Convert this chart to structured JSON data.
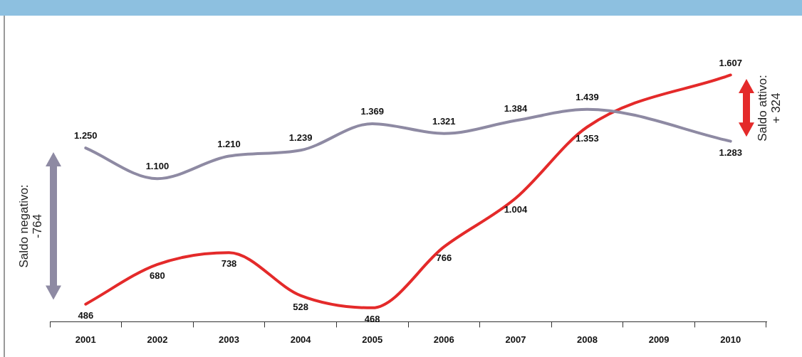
{
  "chart_data": {
    "type": "line",
    "categories": [
      "2001",
      "2002",
      "2003",
      "2004",
      "2005",
      "2006",
      "2007",
      "2008",
      "2009",
      "2010"
    ],
    "series": [
      {
        "color": "#8e8aa3",
        "values": [
          1250,
          1100,
          1210,
          1239,
          1369,
          1321,
          1384,
          1439,
          null,
          1283
        ],
        "value_labels": [
          "1.250",
          "1.100",
          "1.210",
          "1.239",
          "1.369",
          "1.321",
          "1.384",
          "1.439",
          null,
          "1.283"
        ]
      },
      {
        "color": "#e42a2a",
        "values": [
          486,
          680,
          738,
          528,
          468,
          766,
          1004,
          1353,
          null,
          1607
        ],
        "value_labels": [
          "486",
          "680",
          "738",
          "528",
          "468",
          "766",
          "1.004",
          "1.353",
          null,
          "1.607"
        ]
      }
    ],
    "marker": "none",
    "grid": false,
    "legend": false,
    "tick_labels": "x",
    "annotations": [
      "Saldo negativo:\n-764",
      "Saldo attivo:\n+ 324"
    ]
  }
}
